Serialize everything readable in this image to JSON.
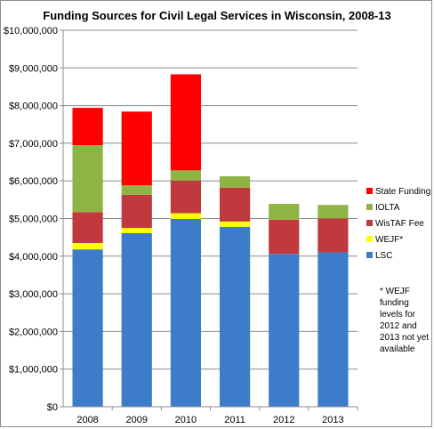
{
  "chart_data": {
    "type": "bar",
    "stacked": true,
    "title": "Funding Sources for Civil Legal Services in Wisconsin, 2008-13",
    "xlabel": "",
    "ylabel": "",
    "categories": [
      "2008",
      "2009",
      "2010",
      "2011",
      "2012",
      "2013"
    ],
    "ylim": [
      0,
      10000000
    ],
    "yticks": [
      0,
      1000000,
      2000000,
      3000000,
      4000000,
      5000000,
      6000000,
      7000000,
      8000000,
      9000000,
      10000000
    ],
    "ytick_labels": [
      "$0",
      "$1,000,000",
      "$2,000,000",
      "$3,000,000",
      "$4,000,000",
      "$5,000,000",
      "$6,000,000",
      "$7,000,000",
      "$8,000,000",
      "$9,000,000",
      "$10,000,000"
    ],
    "grid": true,
    "legend_position": "right",
    "series": [
      {
        "name": "LSC",
        "color": "#3d7cc9",
        "values": [
          4180000,
          4610000,
          4990000,
          4780000,
          4060000,
          4100000
        ]
      },
      {
        "name": "WEJF*",
        "color": "#ffff00",
        "values": [
          170000,
          140000,
          150000,
          140000,
          0,
          0
        ]
      },
      {
        "name": "WisTAF Fee",
        "color": "#c0393c",
        "values": [
          820000,
          880000,
          870000,
          900000,
          910000,
          900000
        ]
      },
      {
        "name": "IOLTA",
        "color": "#8fb444",
        "values": [
          1780000,
          250000,
          270000,
          300000,
          420000,
          360000
        ]
      },
      {
        "name": "State Funding",
        "color": "#ff0000",
        "values": [
          990000,
          1960000,
          2550000,
          0,
          0,
          0
        ]
      }
    ],
    "legend_order": [
      "State Funding",
      "IOLTA",
      "WisTAF Fee",
      "WEJF*",
      "LSC"
    ],
    "annotation": [
      "* WEJF",
      "funding",
      "levels for",
      "2012 and",
      "2013 not yet",
      "available"
    ]
  }
}
